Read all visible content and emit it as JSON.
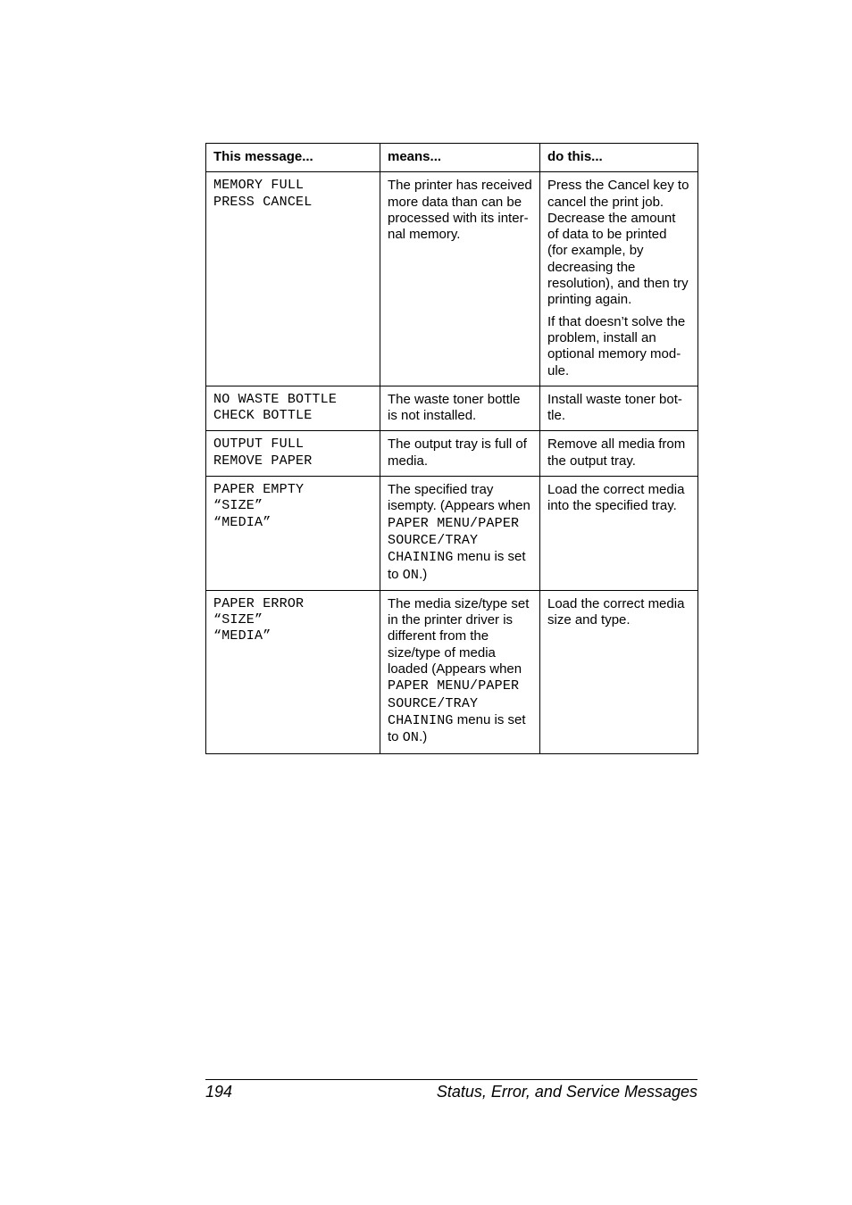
{
  "table": {
    "columns": {
      "c0_width": 195,
      "c1_width": 179,
      "c2_width": 177
    },
    "border_color": "#000000",
    "background_color": "#ffffff",
    "font_size": 15,
    "mono_font": "Courier New",
    "header": {
      "message": "This message...",
      "means": "means...",
      "do": "do this..."
    },
    "rows": [
      {
        "message_lines": [
          "MEMORY FULL",
          "PRESS CANCEL"
        ],
        "means_parts": [
          {
            "t": "The printer has received more data than can be pro­cessed with its inter­nal memory."
          }
        ],
        "do_paras": [
          [
            {
              "t": "Press the Cancel key to cancel the print job. Decrease the amount of data to be printed (for example, by decreasing the resolution), and then try printing again."
            }
          ],
          [
            {
              "t": "If that doesn’t solve the problem, install an optional memory mod­ule."
            }
          ]
        ]
      },
      {
        "message_lines": [
          "NO WASTE BOTTLE",
          "CHECK BOTTLE"
        ],
        "means_parts": [
          {
            "t": "The waste toner bot­tle is not installed."
          }
        ],
        "do_paras": [
          [
            {
              "t": "Install waste toner bot­tle."
            }
          ]
        ]
      },
      {
        "message_lines": [
          "OUTPUT FULL",
          "REMOVE PAPER"
        ],
        "means_parts": [
          {
            "t": "The output tray is full of media."
          }
        ],
        "do_paras": [
          [
            {
              "t": "Remove all media from the output tray."
            }
          ]
        ]
      },
      {
        "message_lines": [
          "PAPER EMPTY",
          "“SIZE”",
          "“MEDIA”"
        ],
        "means_parts": [
          {
            "t": "The specified tray isempty. (Appears when "
          },
          {
            "t": "PAPER MENU/PAPER SOURCE/TRAY CHAINING",
            "mono": true
          },
          {
            "t": " menu is set to "
          },
          {
            "t": "ON",
            "mono": true
          },
          {
            "t": ".)"
          }
        ],
        "do_paras": [
          [
            {
              "t": "Load the correct media into the specified tray."
            }
          ]
        ]
      },
      {
        "message_lines": [
          "PAPER ERROR",
          "“SIZE”",
          "“MEDIA”"
        ],
        "means_parts": [
          {
            "t": "The media size/type set in the printer driver is different from the size/type of media loaded (Appears when "
          },
          {
            "t": "PAPER MENU/PAPER SOURCE/TRAY CHAINING",
            "mono": true
          },
          {
            "t": " menu is set to "
          },
          {
            "t": "ON",
            "mono": true
          },
          {
            "t": ".)"
          }
        ],
        "do_paras": [
          [
            {
              "t": "Load the correct media size and type."
            }
          ]
        ]
      }
    ]
  },
  "footer": {
    "page": "194",
    "title": "Status, Error, and Service Messages",
    "rule_color": "#000000",
    "font_size": 18
  }
}
